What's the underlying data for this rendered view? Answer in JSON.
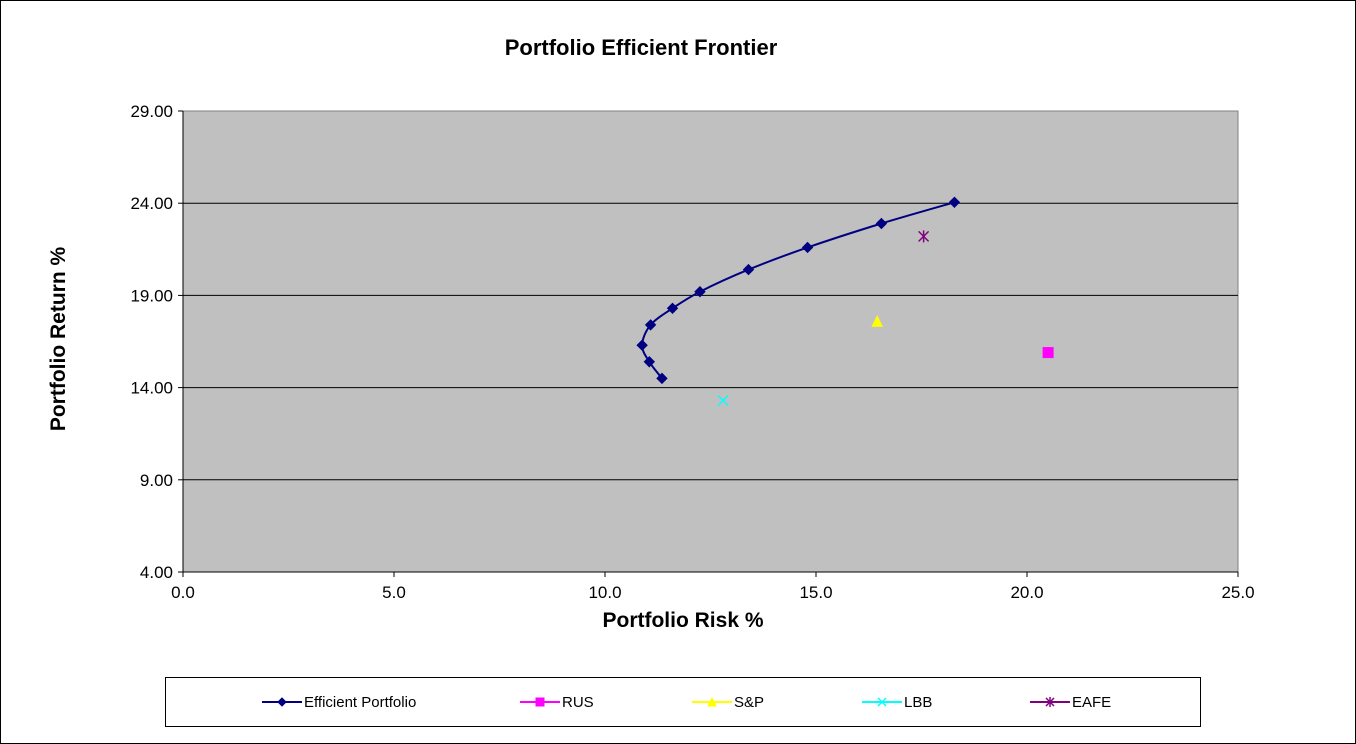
{
  "chart_data": {
    "type": "scatter",
    "title": "Portfolio Efficient Frontier",
    "xlabel": "Portfolio Risk %",
    "ylabel": "Portfolio Return %",
    "xlim": [
      0,
      25
    ],
    "ylim": [
      4,
      29
    ],
    "x_ticks": [
      "0.0",
      "5.0",
      "10.0",
      "15.0",
      "20.0",
      "25.0"
    ],
    "y_ticks": [
      "4.00",
      "9.00",
      "14.00",
      "19.00",
      "24.00",
      "29.00"
    ],
    "grid": "horizontal major",
    "plot_background": "#c0c0c0",
    "legend_position": "bottom",
    "series": [
      {
        "name": "Efficient Portfolio",
        "marker": "diamond",
        "line": true,
        "color": "#000080",
        "x": [
          11.35,
          11.05,
          10.88,
          11.08,
          11.6,
          12.25,
          13.4,
          14.8,
          16.55,
          18.28
        ],
        "y": [
          14.5,
          15.4,
          16.3,
          17.4,
          18.3,
          19.2,
          20.4,
          21.6,
          22.9,
          24.05
        ]
      },
      {
        "name": "RUS",
        "marker": "square",
        "line": false,
        "color": "#ff00ff",
        "x": [
          20.5
        ],
        "y": [
          15.9
        ]
      },
      {
        "name": "S&P",
        "marker": "triangle",
        "line": false,
        "color": "#ffff00",
        "x": [
          16.45
        ],
        "y": [
          17.6
        ]
      },
      {
        "name": "LBB",
        "marker": "x",
        "line": false,
        "color": "#00ffff",
        "x": [
          12.8
        ],
        "y": [
          13.3
        ]
      },
      {
        "name": "EAFE",
        "marker": "star",
        "line": false,
        "color": "#800080",
        "x": [
          17.55
        ],
        "y": [
          22.2
        ]
      }
    ]
  }
}
